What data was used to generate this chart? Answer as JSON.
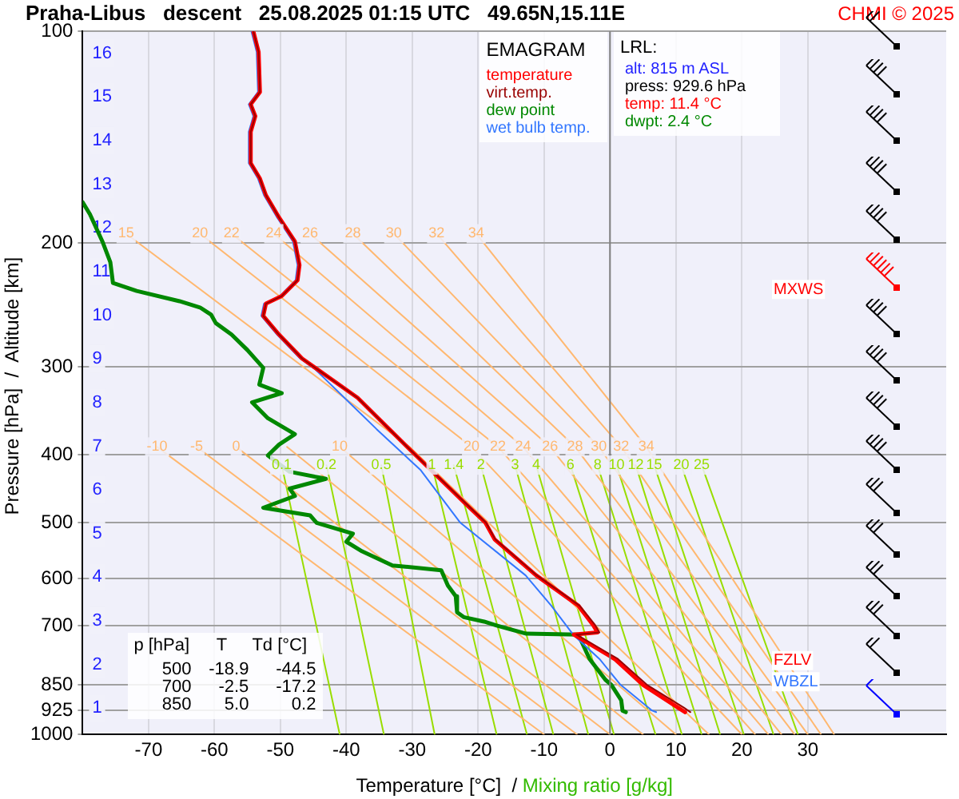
{
  "chart_data": {
    "type": "line",
    "title": "Praha-Libus   descent   25.08.2025 01:15 UTC   49.65N,15.11E",
    "xlabel": "Temperature [°C]  /",
    "ylabel": "Pressure [hPa]  /  Altitude [km]",
    "xlim": [
      -80,
      51
    ],
    "xticks": [
      -70,
      -60,
      -50,
      -40,
      -30,
      -20,
      -10,
      0,
      10,
      20,
      30
    ],
    "ylim": [
      1000,
      100
    ],
    "yticks": [
      100,
      200,
      300,
      400,
      500,
      600,
      700,
      850,
      925,
      1000
    ],
    "y2lim": [
      0.4,
      16.5
    ],
    "y2ticks": [
      1,
      2,
      3,
      4,
      5,
      6,
      7,
      8,
      9,
      10,
      11,
      12,
      13,
      14,
      15,
      16
    ],
    "log": true,
    "grid": true,
    "legend": "top right",
    "ref_lines": [
      {
        "axis": "x",
        "value": 0,
        "color": "#808080"
      }
    ],
    "series": [
      {
        "name": "temperature",
        "color": "#ff0000",
        "x": [
          -54.1,
          -53.3,
          -53.1,
          -54.5,
          -53.8,
          -54.5,
          -54.5,
          -53.1,
          -52.2,
          -50.2,
          -47.8,
          -47.1,
          -47.4,
          -49.8,
          -52.2,
          -52.6,
          -50.2,
          -46.7,
          -44.5,
          -38.3,
          -30.4,
          -22.2,
          -18.9,
          -17.5,
          -11.2,
          -4.8,
          -2.5,
          -1.9,
          -5.5,
          0.7,
          5.0,
          10.3,
          11.4
        ],
        "values": [
          100,
          107,
          122,
          127,
          132,
          139,
          154,
          162,
          171,
          184,
          199,
          215,
          226,
          238,
          244,
          254,
          270,
          292,
          302,
          332,
          393,
          467,
          500,
          528,
          594,
          656,
          700,
          716,
          721,
          781,
          850,
          916,
          929.6
        ]
      },
      {
        "name": "virt.temp.",
        "color": "#990000",
        "x": [
          -54.1,
          -53.3,
          -53.1,
          -54.5,
          -53.8,
          -54.5,
          -54.5,
          -53.1,
          -52.2,
          -50.2,
          -47.8,
          -47.1,
          -47.4,
          -49.8,
          -52.2,
          -52.6,
          -50.2,
          -46.7,
          -44.5,
          -38.3,
          -30.4,
          -22.1,
          -18.8,
          -17.4,
          -11.1,
          -4.6,
          -2.2,
          -1.6,
          -5.1,
          1.2,
          5.6,
          11.2,
          12.2
        ],
        "values": [
          100,
          107,
          122,
          127,
          132,
          139,
          154,
          162,
          171,
          184,
          199,
          215,
          226,
          238,
          244,
          254,
          270,
          292,
          302,
          332,
          393,
          467,
          500,
          528,
          594,
          656,
          700,
          716,
          721,
          781,
          850,
          916,
          929.6
        ]
      },
      {
        "name": "dew point",
        "color": "#008800",
        "x": [
          -80,
          -78.9,
          -77,
          -75.8,
          -75.4,
          -71.8,
          -65.3,
          -62.2,
          -60.5,
          -59.8,
          -57.4,
          -55,
          -52.6,
          -53.2,
          -49.8,
          -54.3,
          -51.9,
          -47.8,
          -50.2,
          -51.9,
          -48.6,
          -43.1,
          -48.6,
          -47.8,
          -52.6,
          -45.5,
          -44.5,
          -39,
          -40,
          -37.6,
          -33,
          -25.6,
          -24.6,
          -23.4,
          -23.2,
          -22.2,
          -19.1,
          -17.2,
          -12.7,
          -4.8,
          -3.1,
          -0.7,
          0.2,
          1.7,
          1.9,
          2.4
        ],
        "values": [
          175,
          182,
          199,
          213,
          228,
          234,
          242,
          247,
          253,
          260,
          270,
          284,
          301,
          318,
          327,
          337,
          355,
          374,
          387,
          401,
          423,
          433,
          447,
          458,
          476,
          488,
          500,
          518,
          532,
          549,
          575,
          584,
          614,
          636,
          670,
          681,
          691,
          700,
          719,
          721,
          781,
          836,
          850,
          894,
          925,
          929.6
        ]
      },
      {
        "name": "wet bulb temp.",
        "color": "#3377ff",
        "x": [
          -54.4,
          -53.6,
          -53.4,
          -54.8,
          -54.1,
          -54.8,
          -54.8,
          -53.4,
          -52.5,
          -50.5,
          -48.1,
          -47.4,
          -47.7,
          -50.1,
          -52.5,
          -52.9,
          -50.5,
          -47.0,
          -44.8,
          -35.4,
          -28.7,
          -22.7,
          -12.8,
          -8.9,
          -5.6,
          -1.6,
          1.6,
          6.4,
          7.0
        ],
        "values": [
          100,
          107,
          122,
          127,
          132,
          139,
          154,
          162,
          171,
          184,
          199,
          215,
          226,
          238,
          244,
          254,
          270,
          292,
          302,
          368,
          421,
          500,
          594,
          656,
          721,
          781,
          850,
          925,
          929.6
        ]
      },
      {
        "color": "#ffb870",
        "x": [
          -68.7,
          -10
        ],
        "values": [
          390,
          1000
        ]
      },
      {
        "color": "#ffb870",
        "x": [
          -62.7,
          -5
        ],
        "values": [
          390,
          1000
        ]
      },
      {
        "color": "#ffb870",
        "x": [
          -56.7,
          0
        ],
        "values": [
          390,
          1000
        ]
      },
      {
        "color": "#ffb870",
        "x": [
          -49,
          5
        ],
        "values": [
          390,
          1000
        ]
      },
      {
        "color": "#ffb870",
        "x": [
          -41,
          10
        ],
        "values": [
          390,
          1000
        ]
      },
      {
        "color": "#ffb870",
        "x": [
          -73.4,
          -30.4,
          15
        ],
        "values": [
          194,
          390,
          1000
        ]
      },
      {
        "color": "#ffb870",
        "x": [
          -62.2,
          -21,
          20
        ],
        "values": [
          194,
          390,
          1000
        ]
      },
      {
        "color": "#ffb870",
        "x": [
          -57.4,
          -17,
          22
        ],
        "values": [
          194,
          390,
          1000
        ]
      },
      {
        "color": "#ffb870",
        "x": [
          -51,
          -13.2,
          24
        ],
        "values": [
          194,
          390,
          1000
        ]
      },
      {
        "color": "#ffb870",
        "x": [
          -45.5,
          -9.1,
          26
        ],
        "values": [
          194,
          390,
          1000
        ]
      },
      {
        "color": "#ffb870",
        "x": [
          -39,
          -5.3,
          28
        ],
        "values": [
          194,
          390,
          1000
        ]
      },
      {
        "color": "#ffb870",
        "x": [
          -32.8,
          -1.7,
          30
        ],
        "values": [
          194,
          390,
          1000
        ]
      },
      {
        "color": "#ffb870",
        "x": [
          -26.3,
          1.7,
          32
        ],
        "values": [
          194,
          390,
          1000
        ]
      },
      {
        "color": "#ffb870",
        "x": [
          -20.3,
          5.5,
          34
        ],
        "values": [
          194,
          390,
          1000
        ]
      },
      {
        "color": "#99dd00",
        "x": [
          -49.8,
          -41
        ],
        "values": [
          414,
          1000
        ]
      },
      {
        "color": "#99dd00",
        "x": [
          -43,
          -34.3
        ],
        "values": [
          414,
          1000
        ]
      },
      {
        "color": "#99dd00",
        "x": [
          -34.7,
          -26.6
        ],
        "values": [
          414,
          1000
        ]
      },
      {
        "color": "#99dd00",
        "x": [
          -27,
          -17.2
        ],
        "values": [
          414,
          1000
        ]
      },
      {
        "color": "#99dd00",
        "x": [
          -23.7,
          -12.6
        ],
        "values": [
          414,
          1000
        ]
      },
      {
        "color": "#99dd00",
        "x": [
          -19.6,
          -8.6
        ],
        "values": [
          414,
          1000
        ]
      },
      {
        "color": "#99dd00",
        "x": [
          -14.4,
          -3.3
        ],
        "values": [
          414,
          1000
        ]
      },
      {
        "color": "#99dd00",
        "x": [
          -11.2,
          0.6
        ],
        "values": [
          414,
          1000
        ]
      },
      {
        "color": "#99dd00",
        "x": [
          -6,
          6.9
        ],
        "values": [
          414,
          1000
        ]
      },
      {
        "color": "#99dd00",
        "x": [
          -1.9,
          10.9
        ],
        "values": [
          414,
          1000
        ]
      },
      {
        "color": "#99dd00",
        "x": [
          1.0,
          13.9
        ],
        "values": [
          414,
          1000
        ]
      },
      {
        "color": "#99dd00",
        "x": [
          3.9,
          16.7
        ],
        "values": [
          414,
          1000
        ]
      },
      {
        "color": "#99dd00",
        "x": [
          6.7,
          20.3
        ],
        "values": [
          414,
          1000
        ]
      },
      {
        "color": "#99dd00",
        "x": [
          10.8,
          24.8
        ],
        "values": [
          414,
          1000
        ]
      },
      {
        "color": "#99dd00",
        "x": [
          13.9,
          28.5
        ],
        "values": [
          414,
          1000
        ]
      }
    ],
    "annotations": [
      "Mixing ratio [g/kg]",
      "CHMI © 2025",
      "EMAGRAM",
      "LRL:",
      "alt: 815 m ASL",
      "press: 929.6 hPa",
      "temp: 11.4 °C",
      "dwpt: 2.4 °C",
      "p [hPa]",
      "T",
      "Td [°C]",
      "500",
      "-18.9",
      "-44.5",
      "700",
      "-2.5",
      "-17.2",
      "850",
      "5.0",
      "0.2",
      "MXWS",
      "FZLV",
      "WBZL",
      {
        "text": "-10",
        "x": -68.7,
        "y": 390
      },
      {
        "text": "-5",
        "x": -62.7,
        "y": 390
      },
      {
        "text": "0",
        "x": -56.7,
        "y": 390
      },
      {
        "text": "10",
        "x": -41,
        "y": 390
      },
      {
        "text": "20",
        "x": -21,
        "y": 390
      },
      {
        "text": "22",
        "x": -17,
        "y": 390
      },
      {
        "text": "24",
        "x": -13.2,
        "y": 390
      },
      {
        "text": "26",
        "x": -9.1,
        "y": 390
      },
      {
        "text": "28",
        "x": -5.3,
        "y": 390
      },
      {
        "text": "30",
        "x": -1.7,
        "y": 390
      },
      {
        "text": "32",
        "x": 1.7,
        "y": 390
      },
      {
        "text": "34",
        "x": 5.5,
        "y": 390
      },
      {
        "text": "15",
        "x": -73.4,
        "y": 194
      },
      {
        "text": "20",
        "x": -62.2,
        "y": 194
      },
      {
        "text": "22",
        "x": -57.4,
        "y": 194
      },
      {
        "text": "24",
        "x": -51,
        "y": 194
      },
      {
        "text": "26",
        "x": -45.5,
        "y": 194
      },
      {
        "text": "28",
        "x": -39,
        "y": 194
      },
      {
        "text": "30",
        "x": -32.8,
        "y": 194
      },
      {
        "text": "32",
        "x": -26.3,
        "y": 194
      },
      {
        "text": "34",
        "x": -20.3,
        "y": 194
      },
      {
        "text": "0.1",
        "x": -49.8,
        "y": 414
      },
      {
        "text": "0.2",
        "x": -43,
        "y": 414
      },
      {
        "text": "0.5",
        "x": -34.7,
        "y": 414
      },
      {
        "text": "1",
        "x": -27,
        "y": 414
      },
      {
        "text": "1.4",
        "x": -23.7,
        "y": 414
      },
      {
        "text": "2",
        "x": -19.6,
        "y": 414
      },
      {
        "text": "3",
        "x": -14.4,
        "y": 414
      },
      {
        "text": "4",
        "x": -11.2,
        "y": 414
      },
      {
        "text": "6",
        "x": -6,
        "y": 414
      },
      {
        "text": "8",
        "x": -1.9,
        "y": 414
      },
      {
        "text": "10",
        "x": 1.0,
        "y": 414
      },
      {
        "text": "12",
        "x": 3.9,
        "y": 414
      },
      {
        "text": "15",
        "x": 6.7,
        "y": 414
      },
      {
        "text": "20",
        "x": 10.8,
        "y": 414
      },
      {
        "text": "25",
        "x": 13.9,
        "y": 414
      }
    ]
  }
}
